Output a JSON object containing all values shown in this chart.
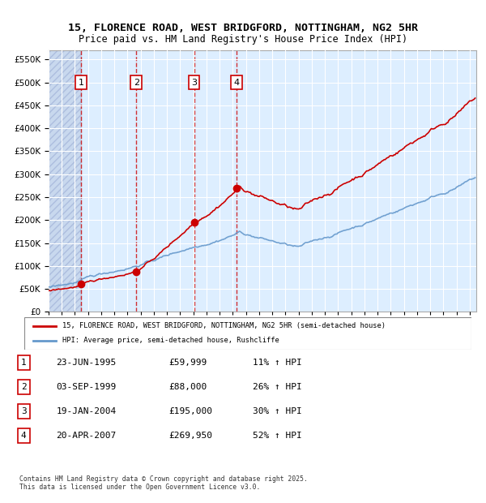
{
  "title_line1": "15, FLORENCE ROAD, WEST BRIDGFORD, NOTTINGHAM, NG2 5HR",
  "title_line2": "Price paid vs. HM Land Registry's House Price Index (HPI)",
  "ylabel": "",
  "ylim": [
    0,
    570000
  ],
  "yticks": [
    0,
    50000,
    100000,
    150000,
    200000,
    250000,
    300000,
    350000,
    400000,
    450000,
    500000,
    550000
  ],
  "xlim_start": 1993.0,
  "xlim_end": 2025.5,
  "sale_dates": [
    1995.47,
    1999.67,
    2004.05,
    2007.3
  ],
  "sale_prices": [
    59999,
    88000,
    195000,
    269950
  ],
  "sale_labels": [
    "1",
    "2",
    "3",
    "4"
  ],
  "table_rows": [
    [
      "1",
      "23-JUN-1995",
      "£59,999",
      "11% ↑ HPI"
    ],
    [
      "2",
      "03-SEP-1999",
      "£88,000",
      "26% ↑ HPI"
    ],
    [
      "3",
      "19-JAN-2004",
      "£195,000",
      "30% ↑ HPI"
    ],
    [
      "4",
      "20-APR-2007",
      "£269,950",
      "52% ↑ HPI"
    ]
  ],
  "legend_line1": "15, FLORENCE ROAD, WEST BRIDGFORD, NOTTINGHAM, NG2 5HR (semi-detached house)",
  "legend_line2": "HPI: Average price, semi-detached house, Rushcliffe",
  "red_color": "#cc0000",
  "blue_color": "#6699cc",
  "background_chart": "#ddeeff",
  "background_hatched": "#ccd9ee",
  "footnote": "Contains HM Land Registry data © Crown copyright and database right 2025.\nThis data is licensed under the Open Government Licence v3.0."
}
